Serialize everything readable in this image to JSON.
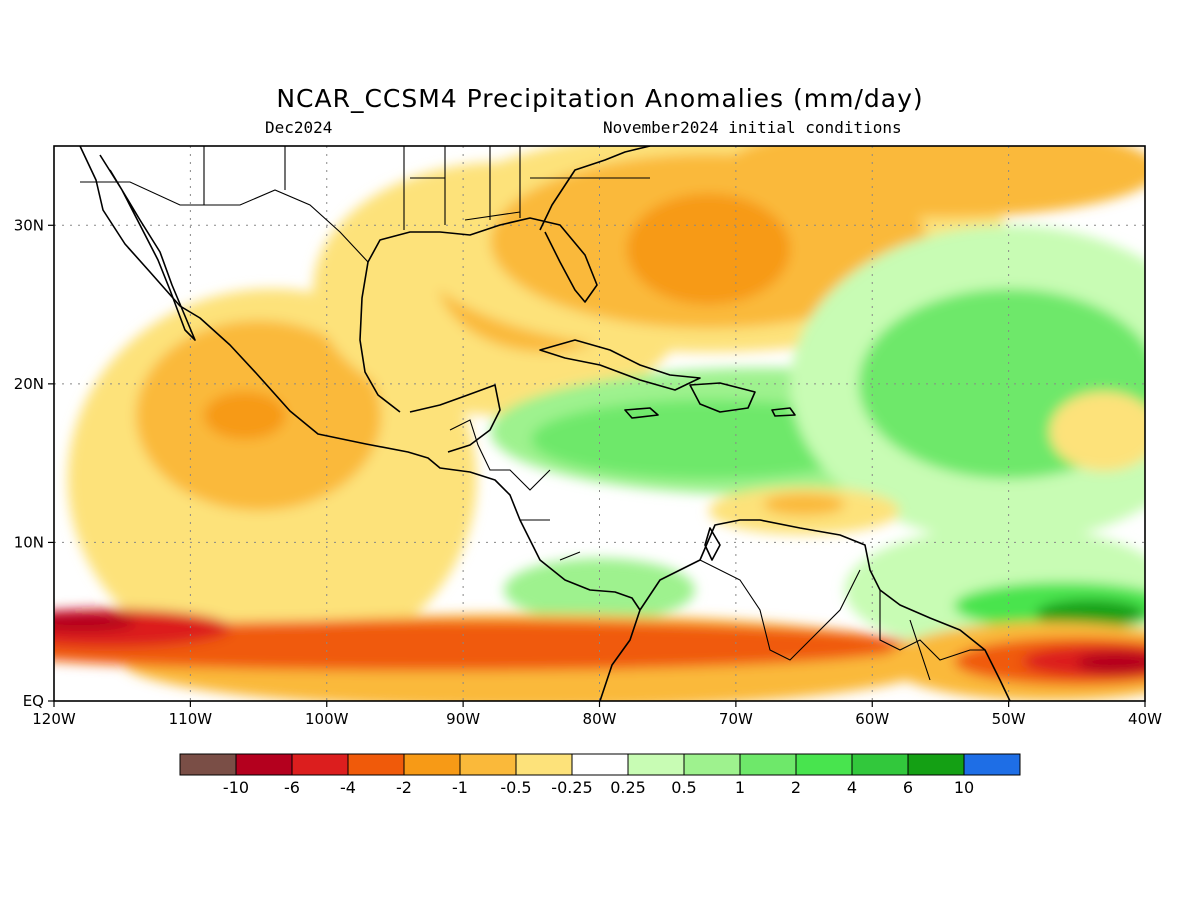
{
  "header": {
    "title": "NCAR_CCSM4 Precipitation Anomalies (mm/day)",
    "valid_month": "Dec2024",
    "init_note": "November2024 initial conditions"
  },
  "map": {
    "lon_range": [
      -120,
      -40
    ],
    "lat_range": [
      0,
      35
    ],
    "x_ticks": [
      "120W",
      "110W",
      "100W",
      "90W",
      "80W",
      "70W",
      "60W",
      "50W",
      "40W"
    ],
    "y_ticks": [
      "EQ",
      "10N",
      "20N",
      "30N"
    ]
  },
  "colorbar": {
    "colors": [
      "#7a4e46",
      "#b4001e",
      "#dc1e1e",
      "#f05a0a",
      "#f79a16",
      "#fab93a",
      "#fde27a",
      "#ffffff",
      "#c8fcb4",
      "#9ef28e",
      "#6ee86a",
      "#48e44e",
      "#32c83c",
      "#14a014",
      "#1e6ee6"
    ],
    "labels": [
      "-10",
      "-6",
      "-4",
      "-2",
      "-1",
      "-0.5",
      "-0.25",
      "0.25",
      "0.5",
      "1",
      "2",
      "4",
      "6",
      "10"
    ]
  },
  "anomaly_fields": [
    {
      "color": "#fde27a",
      "cx": -104,
      "cy": 14,
      "rx": 15,
      "ry": 12
    },
    {
      "color": "#fab93a",
      "cx": -105,
      "cy": 18,
      "rx": 9,
      "ry": 6
    },
    {
      "color": "#f79a16",
      "cx": -106,
      "cy": 18,
      "rx": 3,
      "ry": 1.5
    },
    {
      "color": "#fde27a",
      "cx": -87,
      "cy": 26,
      "rx": 14,
      "ry": 8
    },
    {
      "color": "#fab93a",
      "cx": -84,
      "cy": 27,
      "rx": 8,
      "ry": 5
    },
    {
      "color": "#fde27a",
      "cx": -72,
      "cy": 29,
      "rx": 22,
      "ry": 7
    },
    {
      "color": "#fab93a",
      "cx": -72,
      "cy": 29,
      "rx": 16,
      "ry": 5.5
    },
    {
      "color": "#f79a16",
      "cx": -72,
      "cy": 28.5,
      "rx": 6,
      "ry": 3.5
    },
    {
      "color": "#fab93a",
      "cx": -55,
      "cy": 33.5,
      "rx": 16,
      "ry": 3
    },
    {
      "color": "#9ef28e",
      "cx": -68,
      "cy": 17,
      "rx": 20,
      "ry": 4
    },
    {
      "color": "#6ee86a",
      "cx": -72,
      "cy": 16.5,
      "rx": 13,
      "ry": 2.5
    },
    {
      "color": "#c8fcb4",
      "cx": -50,
      "cy": 20,
      "rx": 16,
      "ry": 10
    },
    {
      "color": "#6ee86a",
      "cx": -50,
      "cy": 20,
      "rx": 11,
      "ry": 6
    },
    {
      "color": "#fde27a",
      "cx": -43,
      "cy": 17,
      "rx": 4,
      "ry": 2.5
    },
    {
      "color": "#c8fcb4",
      "cx": -50,
      "cy": 7,
      "rx": 12,
      "ry": 4
    },
    {
      "color": "#48e44e",
      "cx": -46,
      "cy": 6,
      "rx": 8,
      "ry": 1.5
    },
    {
      "color": "#14a014",
      "cx": -44,
      "cy": 5.5,
      "rx": 4,
      "ry": 0.9
    },
    {
      "color": "#9ef28e",
      "cx": -80,
      "cy": 7,
      "rx": 7,
      "ry": 2
    },
    {
      "color": "#fde27a",
      "cx": -65,
      "cy": 12,
      "rx": 7,
      "ry": 1.5
    },
    {
      "color": "#fab93a",
      "cx": -65,
      "cy": 12.4,
      "rx": 3,
      "ry": 0.7
    },
    {
      "color": "#fab93a",
      "cx": -85,
      "cy": 2.5,
      "rx": 30,
      "ry": 3
    },
    {
      "color": "#f05a0a",
      "cx": -92,
      "cy": 3.5,
      "rx": 35,
      "ry": 1.6
    },
    {
      "color": "#dc1e1e",
      "cx": -116,
      "cy": 4.6,
      "rx": 9,
      "ry": 1.2
    },
    {
      "color": "#b4001e",
      "cx": -118,
      "cy": 5,
      "rx": 4,
      "ry": 0.6
    },
    {
      "color": "#fab93a",
      "cx": -47,
      "cy": 2.5,
      "rx": 12,
      "ry": 2.5
    },
    {
      "color": "#f05a0a",
      "cx": -45,
      "cy": 2.5,
      "rx": 9,
      "ry": 1.5
    },
    {
      "color": "#dc1e1e",
      "cx": -43,
      "cy": 2.5,
      "rx": 6,
      "ry": 1
    },
    {
      "color": "#b4001e",
      "cx": -42,
      "cy": 2.4,
      "rx": 3,
      "ry": 0.7
    }
  ]
}
